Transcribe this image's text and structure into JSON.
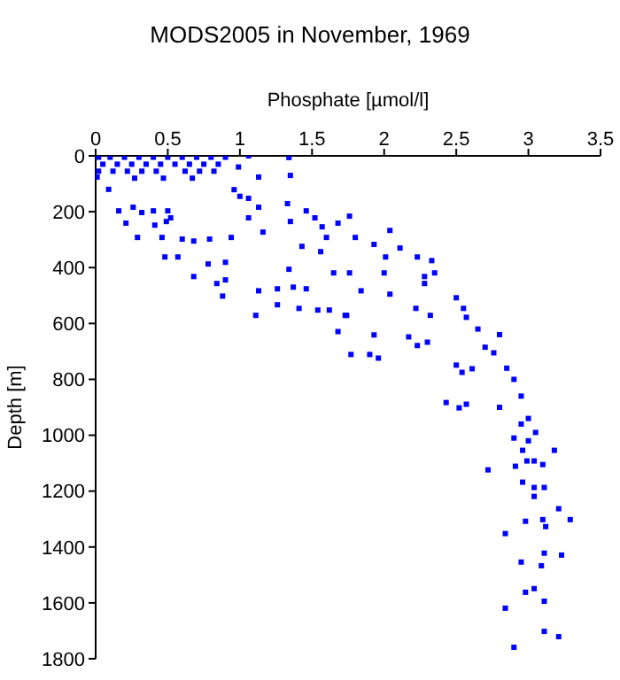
{
  "chart_data": {
    "type": "scatter",
    "title": "MODS2005 in November, 1969",
    "xlabel": "Phosphate [µmol/l]",
    "ylabel": "Depth [m]",
    "xlim": [
      0,
      3.5
    ],
    "xticks": [
      0,
      0.5,
      1,
      1.5,
      2,
      2.5,
      3,
      3.5
    ],
    "ylim": [
      1800,
      0
    ],
    "yticks": [
      0,
      200,
      400,
      600,
      800,
      1000,
      1200,
      1400,
      1600,
      1800
    ],
    "grid": false,
    "legend": false,
    "marker": "square",
    "series": [
      {
        "color": "#0000ff",
        "x": [
          0.02,
          0.1,
          0.2,
          0.3,
          0.4,
          0.5,
          0.6,
          0.7,
          0.8,
          0.9,
          0.05,
          0.15,
          0.25,
          0.35,
          0.45,
          0.55,
          0.65,
          0.75,
          0.85,
          0.02,
          0.12,
          0.22,
          0.32,
          0.42,
          0.62,
          0.72,
          0.82,
          0.27,
          0.47,
          0.67,
          1.06,
          0.99,
          1.13,
          0.01,
          0.09,
          0.16,
          0.21,
          0.26,
          0.29,
          0.32,
          0.4,
          0.41,
          0.46,
          0.48,
          0.57,
          0.52,
          0.5,
          0.49,
          0.6,
          0.68,
          0.68,
          0.78,
          0.79,
          0.84,
          0.88,
          0.9,
          0.9,
          0.94,
          0.96,
          1.0,
          1.06,
          1.06,
          1.13,
          1.16,
          1.13,
          1.11,
          1.26,
          1.26,
          1.33,
          1.34,
          1.35,
          1.35,
          1.34,
          1.37,
          1.41,
          1.43,
          1.46,
          1.46,
          1.52,
          1.57,
          1.54,
          1.6,
          1.56,
          1.62,
          1.68,
          1.73,
          1.76,
          1.76,
          2.04,
          1.8,
          1.93,
          2.11,
          2.01,
          2.23,
          2.33,
          2.28,
          2.28,
          2.35,
          2.0,
          2.04,
          1.84,
          2.22,
          2.32,
          2.5,
          2.55,
          2.57,
          1.93,
          1.9,
          1.96,
          1.77,
          2.17,
          2.23,
          2.3,
          1.74,
          1.68,
          1.65,
          2.5,
          2.54,
          2.61,
          2.43,
          2.52,
          2.57,
          2.76,
          2.85,
          2.9,
          2.95,
          2.8,
          3.0,
          2.95,
          3.05,
          2.9,
          3.0,
          2.7,
          2.65,
          2.8,
          2.96,
          3.18,
          2.99,
          3.04,
          3.1,
          2.91,
          2.72,
          2.96,
          3.04,
          3.11,
          3.04,
          3.21,
          3.1,
          3.29,
          2.98,
          3.12,
          2.84,
          3.11,
          3.23,
          2.95,
          3.09,
          3.04,
          2.98,
          3.11,
          2.84,
          3.11,
          3.21,
          2.9
        ],
        "values": [
          5,
          5,
          5,
          5,
          5,
          5,
          5,
          5,
          5,
          5,
          30,
          30,
          30,
          30,
          30,
          30,
          30,
          30,
          30,
          55,
          55,
          55,
          55,
          55,
          55,
          55,
          55,
          80,
          80,
          80,
          0,
          40,
          76,
          76,
          120,
          197,
          241,
          184,
          292,
          203,
          197,
          248,
          292,
          362,
          362,
          222,
          197,
          235,
          298,
          305,
          432,
          387,
          298,
          457,
          502,
          444,
          381,
          292,
          121,
          145,
          152,
          222,
          184,
          273,
          483,
          571,
          476,
          533,
          171,
          6,
          70,
          235,
          406,
          470,
          546,
          324,
          197,
          476,
          222,
          254,
          552,
          292,
          343,
          552,
          241,
          571,
          216,
          419,
          267,
          292,
          317,
          330,
          362,
          362,
          375,
          432,
          457,
          419,
          419,
          495,
          483,
          546,
          571,
          508,
          546,
          578,
          641,
          711,
          724,
          711,
          648,
          679,
          667,
          571,
          629,
          419,
          749,
          775,
          762,
          883,
          902,
          889,
          705,
          760,
          800,
          860,
          900,
          940,
          960,
          990,
          1010,
          1020,
          685,
          620,
          640,
          1054,
          1054,
          1092,
          1092,
          1105,
          1111,
          1124,
          1168,
          1187,
          1187,
          1219,
          1263,
          1302,
          1302,
          1308,
          1327,
          1352,
          1422,
          1429,
          1454,
          1467,
          1549,
          1562,
          1594,
          1619,
          1702,
          1721,
          1759
        ]
      }
    ]
  }
}
